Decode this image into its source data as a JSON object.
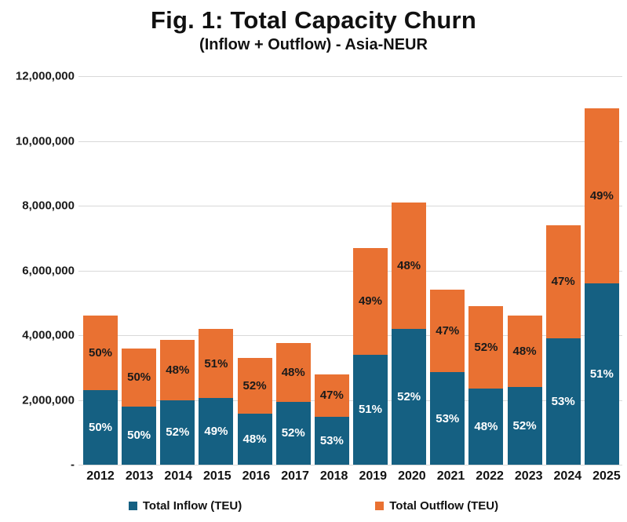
{
  "header": {
    "title": "Fig. 1: Total Capacity Churn",
    "subtitle": "(Inflow + Outflow) - Asia-NEUR"
  },
  "colors": {
    "inflow": "#156082",
    "outflow": "#E97132",
    "gridline": "#d9d9d9"
  },
  "legend": {
    "inflow_label": "Total Inflow (TEU)",
    "outflow_label": "Total Outflow (TEU)"
  },
  "chart_data": {
    "type": "bar",
    "stacked": true,
    "title": "Fig. 1: Total Capacity Churn",
    "subtitle": "(Inflow + Outflow) - Asia-NEUR",
    "categories": [
      "2012",
      "2013",
      "2014",
      "2015",
      "2016",
      "2017",
      "2018",
      "2019",
      "2020",
      "2021",
      "2022",
      "2023",
      "2024",
      "2025"
    ],
    "series": [
      {
        "name": "Total Inflow (TEU)",
        "color": "#156082",
        "values": [
          2300000,
          1800000,
          2000000,
          2050000,
          1580000,
          1950000,
          1480000,
          3400000,
          4200000,
          2850000,
          2350000,
          2400000,
          3900000,
          5600000
        ],
        "labels": [
          "50%",
          "50%",
          "52%",
          "49%",
          "48%",
          "52%",
          "53%",
          "51%",
          "52%",
          "53%",
          "48%",
          "52%",
          "53%",
          "51%"
        ]
      },
      {
        "name": "Total Outflow (TEU)",
        "color": "#E97132",
        "values": [
          2300000,
          1800000,
          1850000,
          2150000,
          1720000,
          1800000,
          1320000,
          3300000,
          3900000,
          2550000,
          2550000,
          2200000,
          3500000,
          5400000
        ],
        "labels": [
          "50%",
          "50%",
          "48%",
          "51%",
          "52%",
          "48%",
          "47%",
          "49%",
          "48%",
          "47%",
          "52%",
          "48%",
          "47%",
          "49%"
        ]
      }
    ],
    "xlabel": "",
    "ylabel": "",
    "ylim": [
      0,
      12000000
    ],
    "y_tick_interval": 2000000,
    "y_tick_labels": [
      "-",
      "2,000,000",
      "4,000,000",
      "6,000,000",
      "8,000,000",
      "10,000,000",
      "12,000,000"
    ],
    "grid": true,
    "legend_position": "bottom"
  }
}
